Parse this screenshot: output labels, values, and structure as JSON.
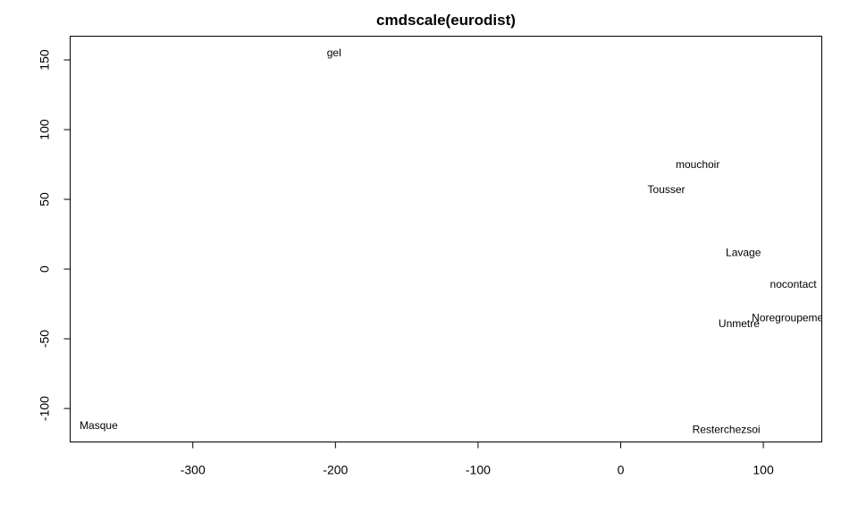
{
  "chart_data": {
    "type": "scatter",
    "title": "cmdscale(eurodist)",
    "xlabel": "",
    "ylabel": "",
    "xlim": [
      -386,
      141
    ],
    "ylim": [
      -124,
      167
    ],
    "x_ticks": [
      -300,
      -200,
      -100,
      0,
      100
    ],
    "y_ticks": [
      150,
      100,
      50,
      0,
      -50,
      -100
    ],
    "x_tick_labels": [
      "-300",
      "-200",
      "-100",
      "0",
      "100"
    ],
    "y_tick_labels": [
      "150",
      "100",
      "50",
      "0",
      "-50",
      "-100"
    ],
    "grid": false,
    "points": [
      {
        "label": "gel",
        "x": -201,
        "y": 155
      },
      {
        "label": "mouchoir",
        "x": 54,
        "y": 75
      },
      {
        "label": "Tousser",
        "x": 32,
        "y": 57
      },
      {
        "label": "Lavage",
        "x": 86,
        "y": 12
      },
      {
        "label": "nocontact",
        "x": 121,
        "y": -11
      },
      {
        "label": "Noregroupeme",
        "x": 117,
        "y": -35
      },
      {
        "label": "Unmetre",
        "x": 83,
        "y": -39
      },
      {
        "label": "Masque",
        "x": -366,
        "y": -112
      },
      {
        "label": "Resterchezsoi",
        "x": 74,
        "y": -115
      }
    ]
  }
}
